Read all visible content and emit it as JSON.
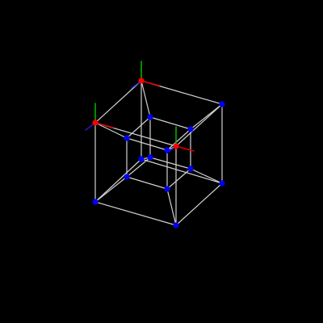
{
  "scene": {
    "object": "tesseract-wireframe",
    "background_color": "#000000",
    "edge_color": "#d0d0d0",
    "vertex_color": "#0000ff",
    "selected_vertex_color": "#ff0000",
    "axis_colors": {
      "x": "#e00000",
      "y": "#00b000",
      "z": "#1c1cc8"
    },
    "vertex_count": 16,
    "edge_count": 32,
    "selected_vertex_count": 3
  }
}
